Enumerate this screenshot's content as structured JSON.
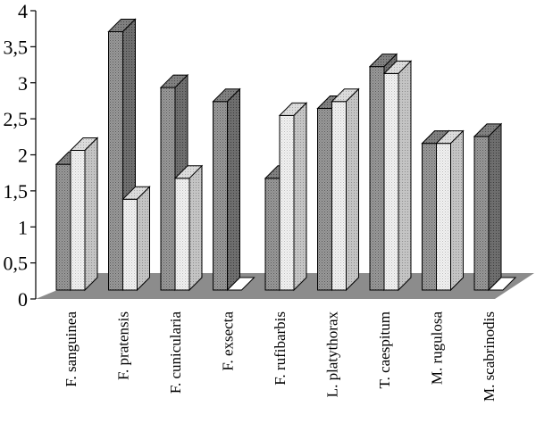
{
  "chart_data": {
    "type": "bar",
    "style": "3d-clustered-column",
    "categories": [
      "F. sanguinea",
      "F. pratensis",
      "F. cunicularia",
      "F. exsecta",
      "F. rufibarbis",
      "L. platythorax",
      "T. caespitum",
      "M. rugulosa",
      "M. scabrinodis"
    ],
    "series": [
      {
        "values": [
          1.8,
          3.7,
          2.9,
          2.7,
          1.6,
          2.6,
          3.2,
          2.1,
          2.2
        ],
        "color": "#8c8c8c",
        "pattern": "dark-dotted"
      },
      {
        "values": [
          2.0,
          1.3,
          1.6,
          0.0,
          2.5,
          2.7,
          3.1,
          2.1,
          0.0
        ],
        "color": "#e8e8e8",
        "pattern": "light-dotted"
      }
    ],
    "yticks": [
      "0",
      "0,5",
      "1",
      "1,5",
      "2",
      "2,5",
      "3",
      "3,5",
      "4"
    ],
    "ylim": [
      0,
      4
    ],
    "xlabel": "",
    "ylabel": "",
    "title": "",
    "grid": false,
    "legend": "none",
    "floor_color": "#8c8c8c"
  }
}
